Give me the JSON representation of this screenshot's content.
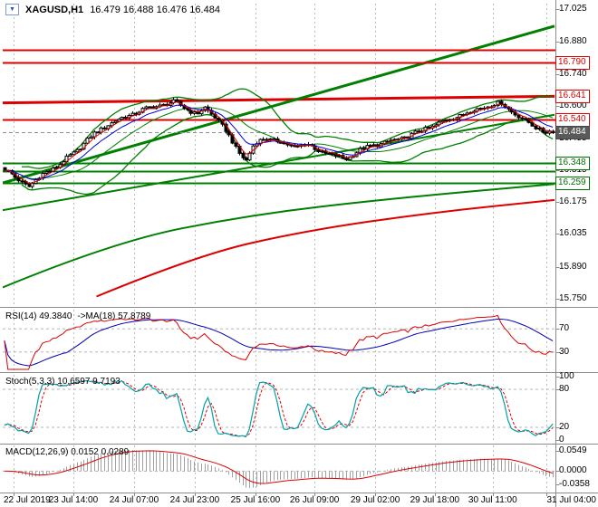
{
  "title_bar": {
    "symbol": "XAGUSD,H1",
    "quotes": "16.479 16.488 16.476 16.484"
  },
  "icons": {
    "chart_marker": "▼"
  },
  "colors": {
    "background": "#ffffff",
    "bull": "#ffffff",
    "bear": "#000000",
    "outline": "#000000",
    "bands": "#008000",
    "trend_green": "#008000",
    "level_red": "#dd0000",
    "ma_blue": "#0000dd",
    "ma_red": "#dd0000",
    "rsi_line": "#dd0000",
    "rsi_ma": "#0000b8",
    "stoch_k": "#00a0a8",
    "stoch_d": "#dd0000",
    "macd_hist": "#a0a0a0",
    "macd_signal": "#dd0000",
    "day_grid": "#bcbcbc",
    "level_grid": "#b4b4b4",
    "separator": "#8c8c8c",
    "current_line": "#909090"
  },
  "panels": {
    "rsi_label": "RSI(14) 49.3840",
    "rsi_ma_label": "->MA(18) 57.8789",
    "stoch_label": "Stoch(5,3,3) 10.6597 9.7193",
    "macd_label": "MACD(12,26,9) 0.0152 0.0289"
  },
  "chart_data": {
    "type": "candlestick",
    "symbol": "XAGUSD",
    "timeframe": "H1",
    "quote": {
      "open": 16.479,
      "high": 16.488,
      "low": 16.476,
      "close": 16.484
    },
    "candle_count": 160,
    "y_ticks": [
      "17.025",
      "16.880",
      "16.740",
      "16.600",
      "16.455",
      "16.315",
      "16.175",
      "16.035",
      "15.890",
      "15.750"
    ],
    "y_axis": {
      "top_price": 17.025,
      "bottom_price": 15.75
    },
    "x_labels": [
      {
        "t": "22 Jul 2019",
        "f": 0.02
      },
      {
        "t": "23 Jul 14:00",
        "f": 0.128
      },
      {
        "t": "24 Jul 07:00",
        "f": 0.238
      },
      {
        "t": "24 Jul 23:00",
        "f": 0.348
      },
      {
        "t": "25 Jul 16:00",
        "f": 0.458
      },
      {
        "t": "26 Jul 09:00",
        "f": 0.565
      },
      {
        "t": "29 Jul 02:00",
        "f": 0.675
      },
      {
        "t": "29 Jul 18:00",
        "f": 0.783
      },
      {
        "t": "30 Jul 11:00",
        "f": 0.888
      },
      {
        "t": "31 Jul 04:00",
        "f": 0.985
      }
    ],
    "price_path": [
      [
        0.0,
        16.32
      ],
      [
        0.02,
        16.28
      ],
      [
        0.045,
        16.245
      ],
      [
        0.07,
        16.3
      ],
      [
        0.1,
        16.34
      ],
      [
        0.13,
        16.4
      ],
      [
        0.16,
        16.47
      ],
      [
        0.19,
        16.52
      ],
      [
        0.22,
        16.55
      ],
      [
        0.25,
        16.58
      ],
      [
        0.28,
        16.6
      ],
      [
        0.31,
        16.615
      ],
      [
        0.33,
        16.59
      ],
      [
        0.35,
        16.56
      ],
      [
        0.365,
        16.59
      ],
      [
        0.385,
        16.55
      ],
      [
        0.405,
        16.48
      ],
      [
        0.425,
        16.4
      ],
      [
        0.44,
        16.36
      ],
      [
        0.455,
        16.43
      ],
      [
        0.475,
        16.46
      ],
      [
        0.5,
        16.44
      ],
      [
        0.525,
        16.42
      ],
      [
        0.55,
        16.43
      ],
      [
        0.575,
        16.4
      ],
      [
        0.6,
        16.38
      ],
      [
        0.62,
        16.365
      ],
      [
        0.645,
        16.4
      ],
      [
        0.67,
        16.425
      ],
      [
        0.7,
        16.44
      ],
      [
        0.73,
        16.46
      ],
      [
        0.76,
        16.49
      ],
      [
        0.79,
        16.52
      ],
      [
        0.82,
        16.55
      ],
      [
        0.85,
        16.575
      ],
      [
        0.88,
        16.6
      ],
      [
        0.905,
        16.61
      ],
      [
        0.925,
        16.575
      ],
      [
        0.945,
        16.54
      ],
      [
        0.965,
        16.51
      ],
      [
        0.985,
        16.484
      ]
    ],
    "horizontal_levels": [
      {
        "price": 16.845,
        "color": "red",
        "width": 2
      },
      {
        "price": 16.79,
        "color": "red",
        "width": 2,
        "label": "16.790"
      },
      {
        "price": 16.54,
        "color": "red",
        "width": 2,
        "label": "16.540"
      },
      {
        "price": 16.484,
        "color": "current",
        "width": 1,
        "dash": true,
        "label": "16.484"
      },
      {
        "price": 16.348,
        "color": "green",
        "width": 2,
        "label": "16.348"
      },
      {
        "price": 16.31,
        "color": "green",
        "width": 2
      },
      {
        "price": 16.259,
        "color": "green",
        "width": 2,
        "label": "16.259"
      }
    ],
    "trend_lines": [
      {
        "f1": 0,
        "p1": 16.612,
        "f2": 1,
        "p2": 16.641,
        "color": "red",
        "width": 3,
        "label": "16.641"
      },
      {
        "f1": 0,
        "p1": 16.26,
        "f2": 1,
        "p2": 16.95,
        "color": "green",
        "width": 3
      },
      {
        "f1": 0,
        "p1": 16.14,
        "f2": 1,
        "p2": 16.56,
        "color": "green",
        "width": 2
      }
    ],
    "slow_curves": [
      {
        "points": [
          [
            0.0,
            15.8
          ],
          [
            0.2,
            16.0
          ],
          [
            0.45,
            16.12
          ],
          [
            0.7,
            16.19
          ],
          [
            1.0,
            16.255
          ]
        ],
        "color": "green",
        "width": 2
      },
      {
        "points": [
          [
            0.17,
            15.76
          ],
          [
            0.35,
            15.94
          ],
          [
            0.55,
            16.05
          ],
          [
            0.78,
            16.13
          ],
          [
            1.0,
            16.185
          ]
        ],
        "color": "red",
        "width": 2
      }
    ],
    "indicators": {
      "rsi": {
        "period": 14,
        "value": 49.384,
        "ma_period": 18,
        "ma_value": 57.8789,
        "levels": [
          70,
          30
        ],
        "range": [
          0,
          100
        ]
      },
      "stochastic": {
        "params": [
          5,
          3,
          3
        ],
        "k": 10.6597,
        "d": 9.7193,
        "axis": [
          "100",
          "80",
          "20",
          "0"
        ],
        "levels": [
          80,
          20
        ],
        "range": [
          0,
          100
        ]
      },
      "macd": {
        "params": [
          12,
          26,
          9
        ],
        "value": 0.0152,
        "signal": 0.0289,
        "axis": [
          "0.0549",
          "0.0000",
          "-0.0358"
        ],
        "range": [
          0.064,
          -0.05
        ]
      }
    }
  }
}
